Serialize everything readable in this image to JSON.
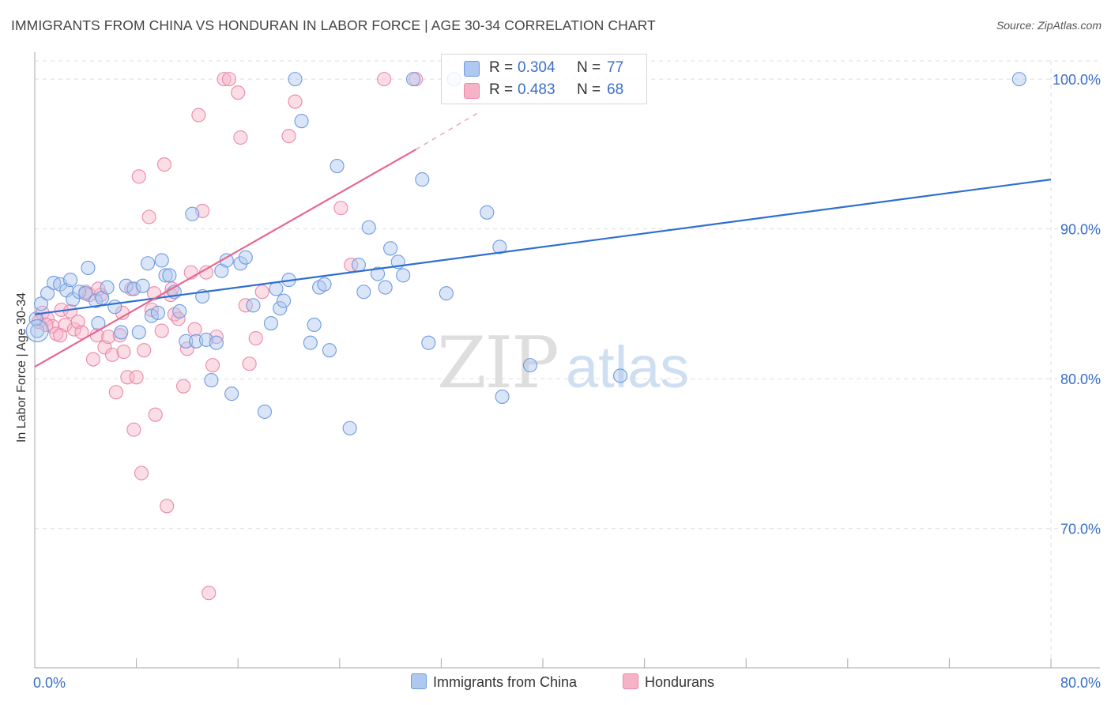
{
  "header": {
    "title": "IMMIGRANTS FROM CHINA VS HONDURAN IN LABOR FORCE | AGE 30-34 CORRELATION CHART",
    "source": "Source: ZipAtlas.com"
  },
  "legend": {
    "rows": [
      {
        "r_label": "R =",
        "r_value": "0.304",
        "n_label": "N =",
        "n_value": "77",
        "color": "#aec8ef"
      },
      {
        "r_label": "R =",
        "r_value": "0.483",
        "n_label": "N =",
        "n_value": "68",
        "color": "#f6b3c8"
      }
    ]
  },
  "bottom_legend": [
    {
      "label": "Immigrants from China",
      "color": "#aec8ef"
    },
    {
      "label": "Hondurans",
      "color": "#f6b3c8"
    }
  ],
  "watermark": {
    "part1": "ZIP",
    "part2": "atlas"
  },
  "colors": {
    "blue_fill": "#aec8ef",
    "blue_stroke": "#6f9be0",
    "blue_line": "#2f6fd0",
    "pink_fill": "#f6b3c8",
    "pink_stroke": "#ec88a8",
    "pink_line": "#e8668f",
    "tick_text": "#3a6fc9",
    "grid": "#dddddd"
  },
  "chart_data": {
    "type": "scatter",
    "title": "IMMIGRANTS FROM CHINA VS HONDURAN IN LABOR FORCE | AGE 30-34 CORRELATION CHART",
    "xlabel": "",
    "ylabel": "In Labor Force | Age 30-34",
    "xlim": [
      0,
      80
    ],
    "ylim": [
      60.7,
      101.8
    ],
    "x_tick_labels": [
      "0.0%",
      "80.0%"
    ],
    "y_ticks": [
      70,
      80,
      90,
      100
    ],
    "y_tick_labels": [
      "70.0%",
      "80.0%",
      "90.0%",
      "100.0%"
    ],
    "grid": true,
    "legend_position": "top-center",
    "series": [
      {
        "name": "Immigrants from China",
        "r": 0.304,
        "n": 77,
        "trend": {
          "x0": 0,
          "y0": 84.3,
          "x1": 80,
          "y1": 93.3
        },
        "points": [
          [
            0.2,
            83.2
          ],
          [
            0.5,
            85.0
          ],
          [
            1.0,
            85.7
          ],
          [
            1.5,
            86.4
          ],
          [
            2.0,
            86.3
          ],
          [
            2.5,
            85.9
          ],
          [
            2.8,
            86.6
          ],
          [
            3.0,
            85.3
          ],
          [
            3.5,
            85.8
          ],
          [
            4.0,
            85.7
          ],
          [
            4.2,
            87.4
          ],
          [
            4.8,
            85.2
          ],
          [
            5.0,
            83.7
          ],
          [
            5.3,
            85.4
          ],
          [
            5.7,
            86.1
          ],
          [
            6.3,
            84.8
          ],
          [
            6.8,
            83.1
          ],
          [
            7.2,
            86.2
          ],
          [
            7.8,
            86.0
          ],
          [
            8.2,
            83.1
          ],
          [
            8.5,
            86.2
          ],
          [
            8.9,
            87.7
          ],
          [
            9.2,
            84.2
          ],
          [
            9.7,
            84.4
          ],
          [
            10.0,
            87.9
          ],
          [
            10.3,
            86.9
          ],
          [
            10.6,
            86.9
          ],
          [
            11.0,
            85.8
          ],
          [
            11.4,
            84.5
          ],
          [
            11.9,
            82.5
          ],
          [
            12.4,
            91.0
          ],
          [
            12.7,
            82.5
          ],
          [
            13.2,
            85.5
          ],
          [
            13.5,
            82.6
          ],
          [
            13.9,
            79.9
          ],
          [
            14.3,
            82.4
          ],
          [
            14.7,
            87.2
          ],
          [
            15.1,
            87.9
          ],
          [
            15.5,
            79.0
          ],
          [
            16.2,
            87.7
          ],
          [
            16.6,
            88.1
          ],
          [
            17.2,
            84.9
          ],
          [
            18.1,
            77.8
          ],
          [
            18.6,
            83.7
          ],
          [
            19.0,
            86.0
          ],
          [
            19.3,
            84.7
          ],
          [
            19.6,
            85.2
          ],
          [
            20.0,
            86.6
          ],
          [
            20.5,
            100.0
          ],
          [
            21.0,
            97.2
          ],
          [
            21.7,
            82.4
          ],
          [
            22.0,
            83.6
          ],
          [
            22.4,
            86.1
          ],
          [
            22.8,
            86.3
          ],
          [
            23.2,
            81.9
          ],
          [
            23.8,
            94.2
          ],
          [
            24.8,
            76.7
          ],
          [
            25.5,
            87.6
          ],
          [
            25.9,
            85.8
          ],
          [
            26.3,
            90.1
          ],
          [
            27.0,
            87.0
          ],
          [
            27.6,
            86.1
          ],
          [
            28.0,
            88.7
          ],
          [
            28.6,
            87.8
          ],
          [
            29.0,
            86.9
          ],
          [
            29.8,
            100.0
          ],
          [
            30.5,
            93.3
          ],
          [
            31.0,
            82.4
          ],
          [
            32.4,
            85.7
          ],
          [
            33.0,
            100.0
          ],
          [
            35.6,
            91.1
          ],
          [
            36.6,
            88.8
          ],
          [
            36.8,
            78.8
          ],
          [
            39.0,
            80.9
          ],
          [
            46.1,
            80.2
          ],
          [
            77.5,
            100.0
          ],
          [
            0.1,
            84.0
          ]
        ]
      },
      {
        "name": "Hondurans",
        "r": 0.483,
        "n": 68,
        "trend": {
          "x0": 0,
          "y0": 80.8,
          "x1": 30,
          "y1": 95.3
        },
        "trend_dashed": {
          "x0": 30,
          "y0": 95.3,
          "x1": 35,
          "y1": 97.8
        },
        "points": [
          [
            0.3,
            83.8
          ],
          [
            0.6,
            84.4
          ],
          [
            1.0,
            84.0
          ],
          [
            1.4,
            83.5
          ],
          [
            1.7,
            83.0
          ],
          [
            2.1,
            84.6
          ],
          [
            2.4,
            83.6
          ],
          [
            2.8,
            84.5
          ],
          [
            3.1,
            83.3
          ],
          [
            3.4,
            83.8
          ],
          [
            3.7,
            83.1
          ],
          [
            4.0,
            85.8
          ],
          [
            4.3,
            85.6
          ],
          [
            4.6,
            81.3
          ],
          [
            4.9,
            82.9
          ],
          [
            5.2,
            85.6
          ],
          [
            5.5,
            82.1
          ],
          [
            5.8,
            82.8
          ],
          [
            6.1,
            81.6
          ],
          [
            6.4,
            79.1
          ],
          [
            6.7,
            82.9
          ],
          [
            7.0,
            81.8
          ],
          [
            7.3,
            80.1
          ],
          [
            7.6,
            86.0
          ],
          [
            7.8,
            76.6
          ],
          [
            8.0,
            80.1
          ],
          [
            8.2,
            93.5
          ],
          [
            8.4,
            73.7
          ],
          [
            8.6,
            81.9
          ],
          [
            9.0,
            90.8
          ],
          [
            9.2,
            84.6
          ],
          [
            9.4,
            85.7
          ],
          [
            9.5,
            77.6
          ],
          [
            10.0,
            83.2
          ],
          [
            10.2,
            94.3
          ],
          [
            10.4,
            71.5
          ],
          [
            10.7,
            85.6
          ],
          [
            11.0,
            84.3
          ],
          [
            11.3,
            84.0
          ],
          [
            11.7,
            79.5
          ],
          [
            12.0,
            82.0
          ],
          [
            12.3,
            87.1
          ],
          [
            12.6,
            83.3
          ],
          [
            12.9,
            97.6
          ],
          [
            13.2,
            91.2
          ],
          [
            13.5,
            87.1
          ],
          [
            13.7,
            65.7
          ],
          [
            14.0,
            80.9
          ],
          [
            14.3,
            82.8
          ],
          [
            14.9,
            100.0
          ],
          [
            15.3,
            100.0
          ],
          [
            16.0,
            99.1
          ],
          [
            16.2,
            96.1
          ],
          [
            16.6,
            84.9
          ],
          [
            16.9,
            81.0
          ],
          [
            17.4,
            82.7
          ],
          [
            17.9,
            85.8
          ],
          [
            20.0,
            96.2
          ],
          [
            20.5,
            98.5
          ],
          [
            24.1,
            91.4
          ],
          [
            24.9,
            87.6
          ],
          [
            27.5,
            100.0
          ],
          [
            30.0,
            100.0
          ],
          [
            5.0,
            86.0
          ],
          [
            2.0,
            82.9
          ],
          [
            6.9,
            84.4
          ],
          [
            10.8,
            86.0
          ],
          [
            0.9,
            83.6
          ]
        ]
      }
    ]
  }
}
